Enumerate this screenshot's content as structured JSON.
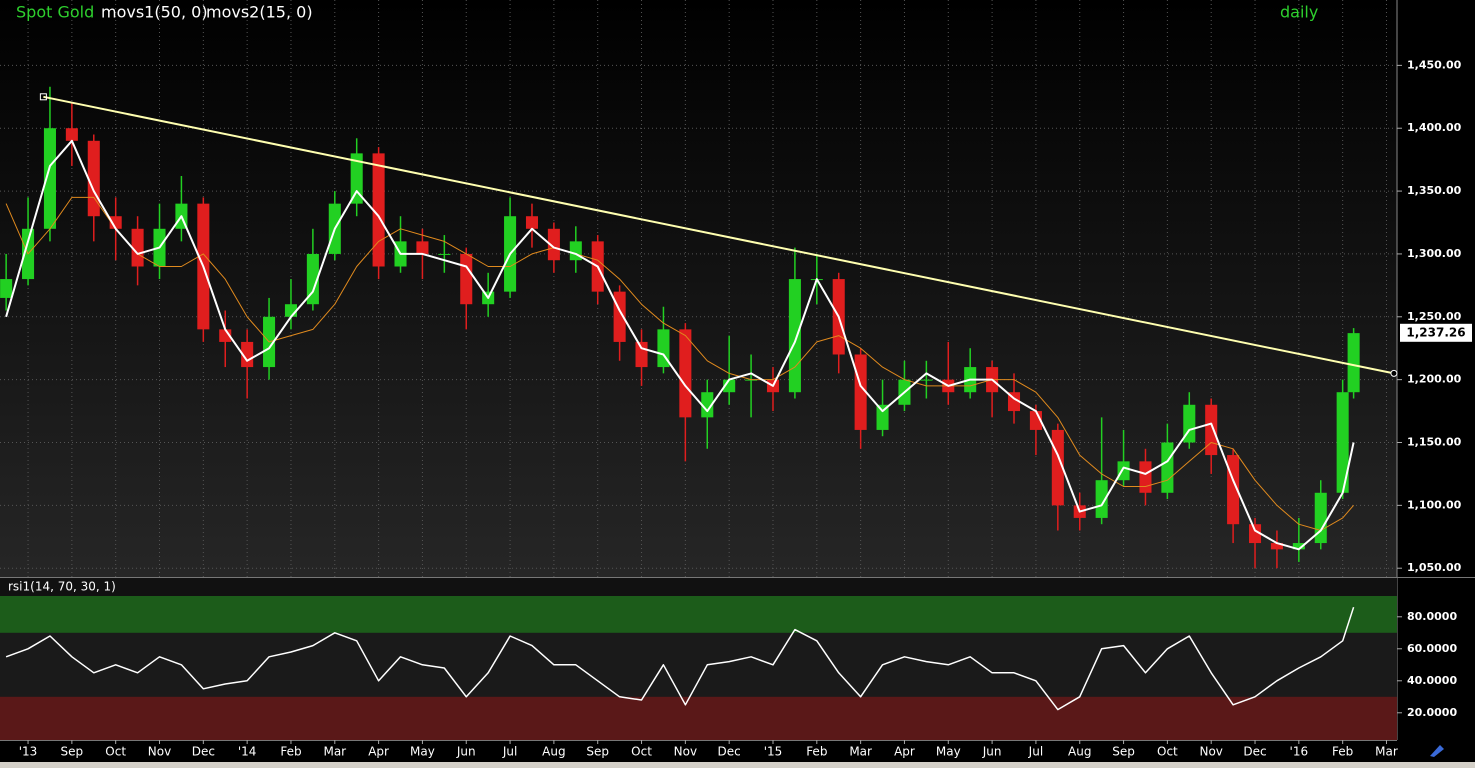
{
  "chart_data": [
    {
      "type": "candlestick",
      "title": "Spot Gold",
      "period": "daily",
      "x": [
        -0.5,
        0,
        0.5,
        1,
        1.5,
        2,
        2.5,
        3,
        3.5,
        4,
        4.5,
        5,
        5.5,
        6,
        6.5,
        7,
        7.5,
        8,
        8.5,
        9,
        9.5,
        10,
        10.5,
        11,
        11.5,
        12,
        12.5,
        13,
        13.5,
        14,
        14.5,
        15,
        15.5,
        16,
        16.5,
        17,
        17.5,
        18,
        18.5,
        19,
        19.5,
        20,
        20.5,
        21,
        21.5,
        22,
        22.5,
        23,
        23.5,
        24,
        24.5,
        25,
        25.5,
        26,
        26.5,
        27,
        27.5,
        28,
        28.5,
        29,
        29.5,
        30,
        30.25
      ],
      "open": [
        1265,
        1280,
        1320,
        1400,
        1390,
        1330,
        1320,
        1290,
        1320,
        1340,
        1240,
        1230,
        1210,
        1250,
        1260,
        1300,
        1340,
        1380,
        1290,
        1310,
        1300,
        1300,
        1260,
        1270,
        1330,
        1320,
        1295,
        1310,
        1270,
        1230,
        1210,
        1240,
        1170,
        1190,
        1200,
        1200,
        1190,
        1280,
        1280,
        1220,
        1160,
        1180,
        1200,
        1200,
        1190,
        1210,
        1190,
        1175,
        1160,
        1100,
        1090,
        1120,
        1135,
        1110,
        1150,
        1180,
        1140,
        1085,
        1070,
        1065,
        1070,
        1110,
        1190
      ],
      "high": [
        1300,
        1345,
        1433,
        1420,
        1395,
        1345,
        1330,
        1340,
        1362,
        1345,
        1255,
        1240,
        1265,
        1280,
        1320,
        1350,
        1392,
        1385,
        1330,
        1320,
        1315,
        1305,
        1285,
        1345,
        1340,
        1325,
        1322,
        1315,
        1275,
        1240,
        1258,
        1245,
        1200,
        1235,
        1220,
        1210,
        1305,
        1300,
        1285,
        1225,
        1200,
        1215,
        1215,
        1230,
        1225,
        1215,
        1205,
        1180,
        1165,
        1110,
        1170,
        1160,
        1145,
        1165,
        1190,
        1185,
        1145,
        1090,
        1080,
        1090,
        1120,
        1200,
        1241
      ],
      "low": [
        1255,
        1275,
        1310,
        1370,
        1310,
        1295,
        1275,
        1280,
        1310,
        1230,
        1210,
        1185,
        1200,
        1240,
        1255,
        1295,
        1330,
        1280,
        1285,
        1280,
        1285,
        1240,
        1250,
        1265,
        1305,
        1285,
        1285,
        1260,
        1215,
        1195,
        1205,
        1135,
        1145,
        1180,
        1170,
        1175,
        1185,
        1260,
        1205,
        1145,
        1155,
        1175,
        1185,
        1180,
        1185,
        1170,
        1165,
        1140,
        1080,
        1080,
        1085,
        1115,
        1100,
        1105,
        1145,
        1125,
        1070,
        1050,
        1050,
        1055,
        1065,
        1105,
        1185
      ],
      "close": [
        1280,
        1320,
        1400,
        1390,
        1330,
        1320,
        1290,
        1320,
        1340,
        1240,
        1230,
        1210,
        1250,
        1260,
        1300,
        1340,
        1380,
        1290,
        1310,
        1300,
        1300,
        1260,
        1270,
        1330,
        1320,
        1295,
        1310,
        1270,
        1230,
        1210,
        1240,
        1170,
        1190,
        1200,
        1200,
        1190,
        1280,
        1280,
        1220,
        1160,
        1180,
        1200,
        1200,
        1190,
        1210,
        1190,
        1175,
        1160,
        1100,
        1090,
        1120,
        1135,
        1110,
        1150,
        1180,
        1140,
        1085,
        1070,
        1065,
        1070,
        1110,
        1190,
        1237
      ],
      "up_color": "#22d022",
      "down_color": "#e01e1e",
      "series": [
        {
          "name": "movs1(50, 0)",
          "color": "#e08a1e",
          "values": [
            1340,
            1300,
            1320,
            1345,
            1345,
            1320,
            1300,
            1290,
            1290,
            1300,
            1280,
            1250,
            1230,
            1235,
            1240,
            1260,
            1290,
            1310,
            1320,
            1315,
            1310,
            1300,
            1290,
            1290,
            1300,
            1305,
            1300,
            1295,
            1280,
            1260,
            1245,
            1235,
            1215,
            1205,
            1200,
            1200,
            1210,
            1230,
            1235,
            1225,
            1210,
            1200,
            1195,
            1195,
            1195,
            1200,
            1200,
            1190,
            1170,
            1140,
            1125,
            1115,
            1115,
            1120,
            1135,
            1150,
            1145,
            1120,
            1100,
            1085,
            1080,
            1090,
            1100
          ]
        },
        {
          "name": "movs2(15, 0)",
          "color": "#ffffff",
          "values": [
            1250,
            1310,
            1370,
            1390,
            1350,
            1320,
            1300,
            1305,
            1330,
            1290,
            1240,
            1215,
            1225,
            1250,
            1270,
            1320,
            1350,
            1330,
            1300,
            1300,
            1295,
            1290,
            1265,
            1300,
            1320,
            1305,
            1300,
            1290,
            1255,
            1225,
            1220,
            1195,
            1175,
            1200,
            1205,
            1195,
            1230,
            1280,
            1250,
            1195,
            1175,
            1190,
            1205,
            1195,
            1200,
            1200,
            1185,
            1175,
            1140,
            1095,
            1100,
            1130,
            1125,
            1135,
            1160,
            1165,
            1120,
            1080,
            1070,
            1065,
            1080,
            1110,
            1150
          ]
        }
      ],
      "trendline": {
        "x": [
          0.35,
          31.17
        ],
        "values": [
          1425,
          1205
        ],
        "color": "#ffffb0"
      },
      "last": {
        "value": 1237.26,
        "label": "1,237.26"
      },
      "xlim": [
        -0.64,
        31.24
      ],
      "ylim": [
        1043,
        1502
      ],
      "grid": true,
      "xticks": [
        {
          "value": 0,
          "label": "'13"
        },
        {
          "value": 1,
          "label": "Sep"
        },
        {
          "value": 2,
          "label": "Oct"
        },
        {
          "value": 3,
          "label": "Nov"
        },
        {
          "value": 4,
          "label": "Dec"
        },
        {
          "value": 5,
          "label": "'14"
        },
        {
          "value": 6,
          "label": "Feb"
        },
        {
          "value": 7,
          "label": "Mar"
        },
        {
          "value": 8,
          "label": "Apr"
        },
        {
          "value": 9,
          "label": "May"
        },
        {
          "value": 10,
          "label": "Jun"
        },
        {
          "value": 11,
          "label": "Jul"
        },
        {
          "value": 12,
          "label": "Aug"
        },
        {
          "value": 13,
          "label": "Sep"
        },
        {
          "value": 14,
          "label": "Oct"
        },
        {
          "value": 15,
          "label": "Nov"
        },
        {
          "value": 16,
          "label": "Dec"
        },
        {
          "value": 17,
          "label": "'15"
        },
        {
          "value": 18,
          "label": "Feb"
        },
        {
          "value": 19,
          "label": "Mar"
        },
        {
          "value": 20,
          "label": "Apr"
        },
        {
          "value": 21,
          "label": "May"
        },
        {
          "value": 22,
          "label": "Jun"
        },
        {
          "value": 23,
          "label": "Jul"
        },
        {
          "value": 24,
          "label": "Aug"
        },
        {
          "value": 25,
          "label": "Sep"
        },
        {
          "value": 26,
          "label": "Oct"
        },
        {
          "value": 27,
          "label": "Nov"
        },
        {
          "value": 28,
          "label": "Dec"
        },
        {
          "value": 29,
          "label": "'16"
        },
        {
          "value": 30,
          "label": "Feb"
        },
        {
          "value": 31,
          "label": "Mar"
        }
      ],
      "yticks": [
        {
          "value": 1050,
          "label": "1,050.00"
        },
        {
          "value": 1100,
          "label": "1,100.00"
        },
        {
          "value": 1150,
          "label": "1,150.00"
        },
        {
          "value": 1200,
          "label": "1,200.00"
        },
        {
          "value": 1250,
          "label": "1,250.00"
        },
        {
          "value": 1300,
          "label": "1,300.00"
        },
        {
          "value": 1350,
          "label": "1,350.00"
        },
        {
          "value": 1400,
          "label": "1,400.00"
        },
        {
          "value": 1450,
          "label": "1,450.00"
        }
      ]
    },
    {
      "type": "line",
      "title": "rsi1(14, 70, 30, 1)",
      "x": [
        -0.5,
        0,
        0.5,
        1,
        1.5,
        2,
        2.5,
        3,
        3.5,
        4,
        4.5,
        5,
        5.5,
        6,
        6.5,
        7,
        7.5,
        8,
        8.5,
        9,
        9.5,
        10,
        10.5,
        11,
        11.5,
        12,
        12.5,
        13,
        13.5,
        14,
        14.5,
        15,
        15.5,
        16,
        16.5,
        17,
        17.5,
        18,
        18.5,
        19,
        19.5,
        20,
        20.5,
        21,
        21.5,
        22,
        22.5,
        23,
        23.5,
        24,
        24.5,
        25,
        25.5,
        26,
        26.5,
        27,
        27.5,
        28,
        28.5,
        29,
        29.5,
        30,
        30.25
      ],
      "values": [
        55,
        60,
        68,
        55,
        45,
        50,
        45,
        55,
        50,
        35,
        38,
        40,
        55,
        58,
        62,
        70,
        65,
        40,
        55,
        50,
        48,
        30,
        45,
        68,
        62,
        50,
        50,
        40,
        30,
        28,
        50,
        25,
        50,
        52,
        55,
        50,
        72,
        65,
        45,
        30,
        50,
        55,
        52,
        50,
        55,
        45,
        45,
        40,
        22,
        30,
        60,
        62,
        45,
        60,
        68,
        45,
        25,
        30,
        40,
        48,
        55,
        65,
        86
      ],
      "color": "#ffffff",
      "bands": [
        {
          "range": [
            70,
            93
          ],
          "color": "#1c5c1a"
        },
        {
          "range": [
            3,
            30
          ],
          "color": "#5a1818"
        }
      ],
      "xlim": [
        -0.64,
        31.24
      ],
      "ylim": [
        3,
        93
      ],
      "yticks": [
        {
          "value": 20,
          "label": "20.0000"
        },
        {
          "value": 40,
          "label": "40.0000"
        },
        {
          "value": 60,
          "label": "60.0000"
        },
        {
          "value": 80,
          "label": "80.0000"
        }
      ]
    }
  ]
}
